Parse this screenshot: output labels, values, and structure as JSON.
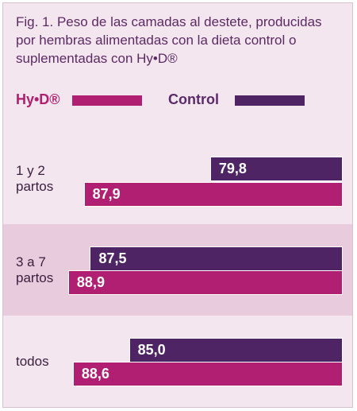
{
  "title": "Fig. 1. Peso de las camadas al destete, producidas por hembras alimentadas con la dieta control o suplementadas con Hy•D®",
  "legend": {
    "hyd_label": "Hy•D®",
    "control_label": "Control"
  },
  "colors": {
    "hyd": "#b11f73",
    "control": "#4e2465",
    "band_top": "#f4e6ef",
    "band_alt": "#e8cbdc"
  },
  "chart_data": {
    "type": "bar",
    "orientation": "horizontal",
    "categories": [
      "1 y 2\npartos",
      "3 a 7\npartos",
      "todos"
    ],
    "series": [
      {
        "name": "Control",
        "values": [
          79.8,
          87.5,
          85.0
        ],
        "labels": [
          "79,8",
          "87,5",
          "85,0"
        ]
      },
      {
        "name": "Hy•D®",
        "values": [
          87.9,
          88.9,
          88.6
        ],
        "labels": [
          "87,9",
          "88,9",
          "88,6"
        ]
      }
    ]
  }
}
